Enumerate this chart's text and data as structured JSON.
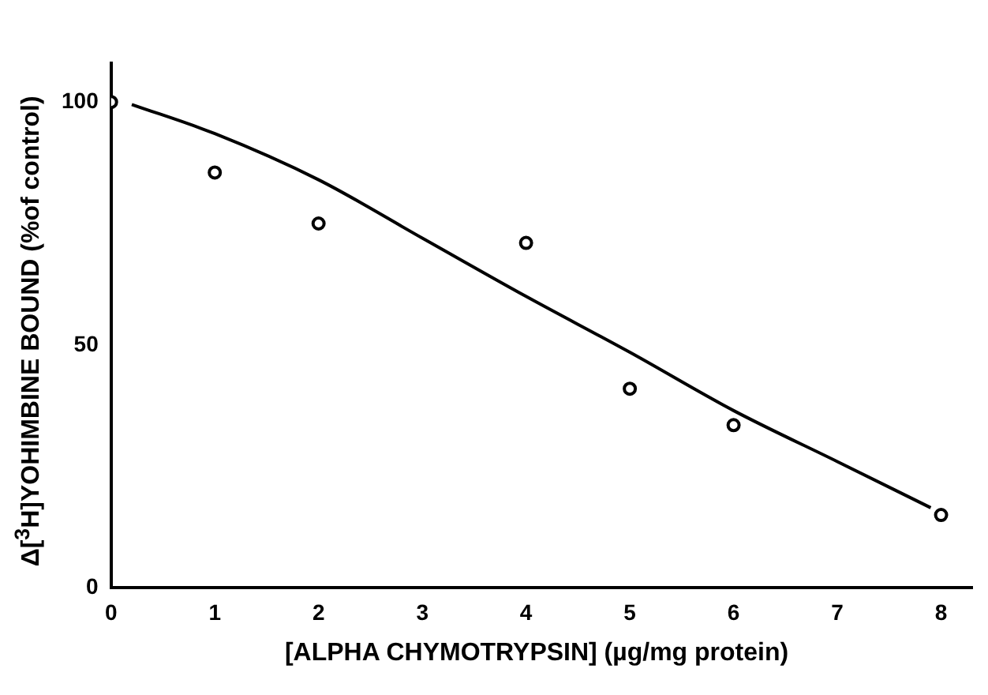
{
  "chart_data": {
    "type": "scatter",
    "xlabel": "[ALPHA CHYMOTRYPSIN] (µg/mg protein)",
    "ylabel": "Δ[$^{3}$H]YOHIMBINE BOUND (%of control)",
    "series": [
      {
        "marker": "circle",
        "color": "#000000",
        "x": [
          0,
          1,
          2,
          4,
          5,
          6,
          8
        ],
        "values": [
          100,
          85.5,
          75,
          71,
          41,
          33.5,
          15
        ]
      },
      {
        "type": "line",
        "marker": "none",
        "color": "#000000",
        "x": [
          0.2,
          1,
          2,
          3,
          4,
          5,
          6,
          7,
          7.9
        ],
        "values": [
          99.5,
          93.5,
          84,
          72,
          60,
          48.5,
          36.5,
          26,
          16.5
        ]
      }
    ],
    "xlim": [
      0,
      8.3
    ],
    "ylim": [
      0,
      108
    ],
    "xticks": [
      0,
      1,
      2,
      3,
      4,
      5,
      6,
      7,
      8
    ],
    "yticks": [
      0,
      50,
      100
    ],
    "grid": false,
    "legend": false,
    "line_style": "solid"
  }
}
